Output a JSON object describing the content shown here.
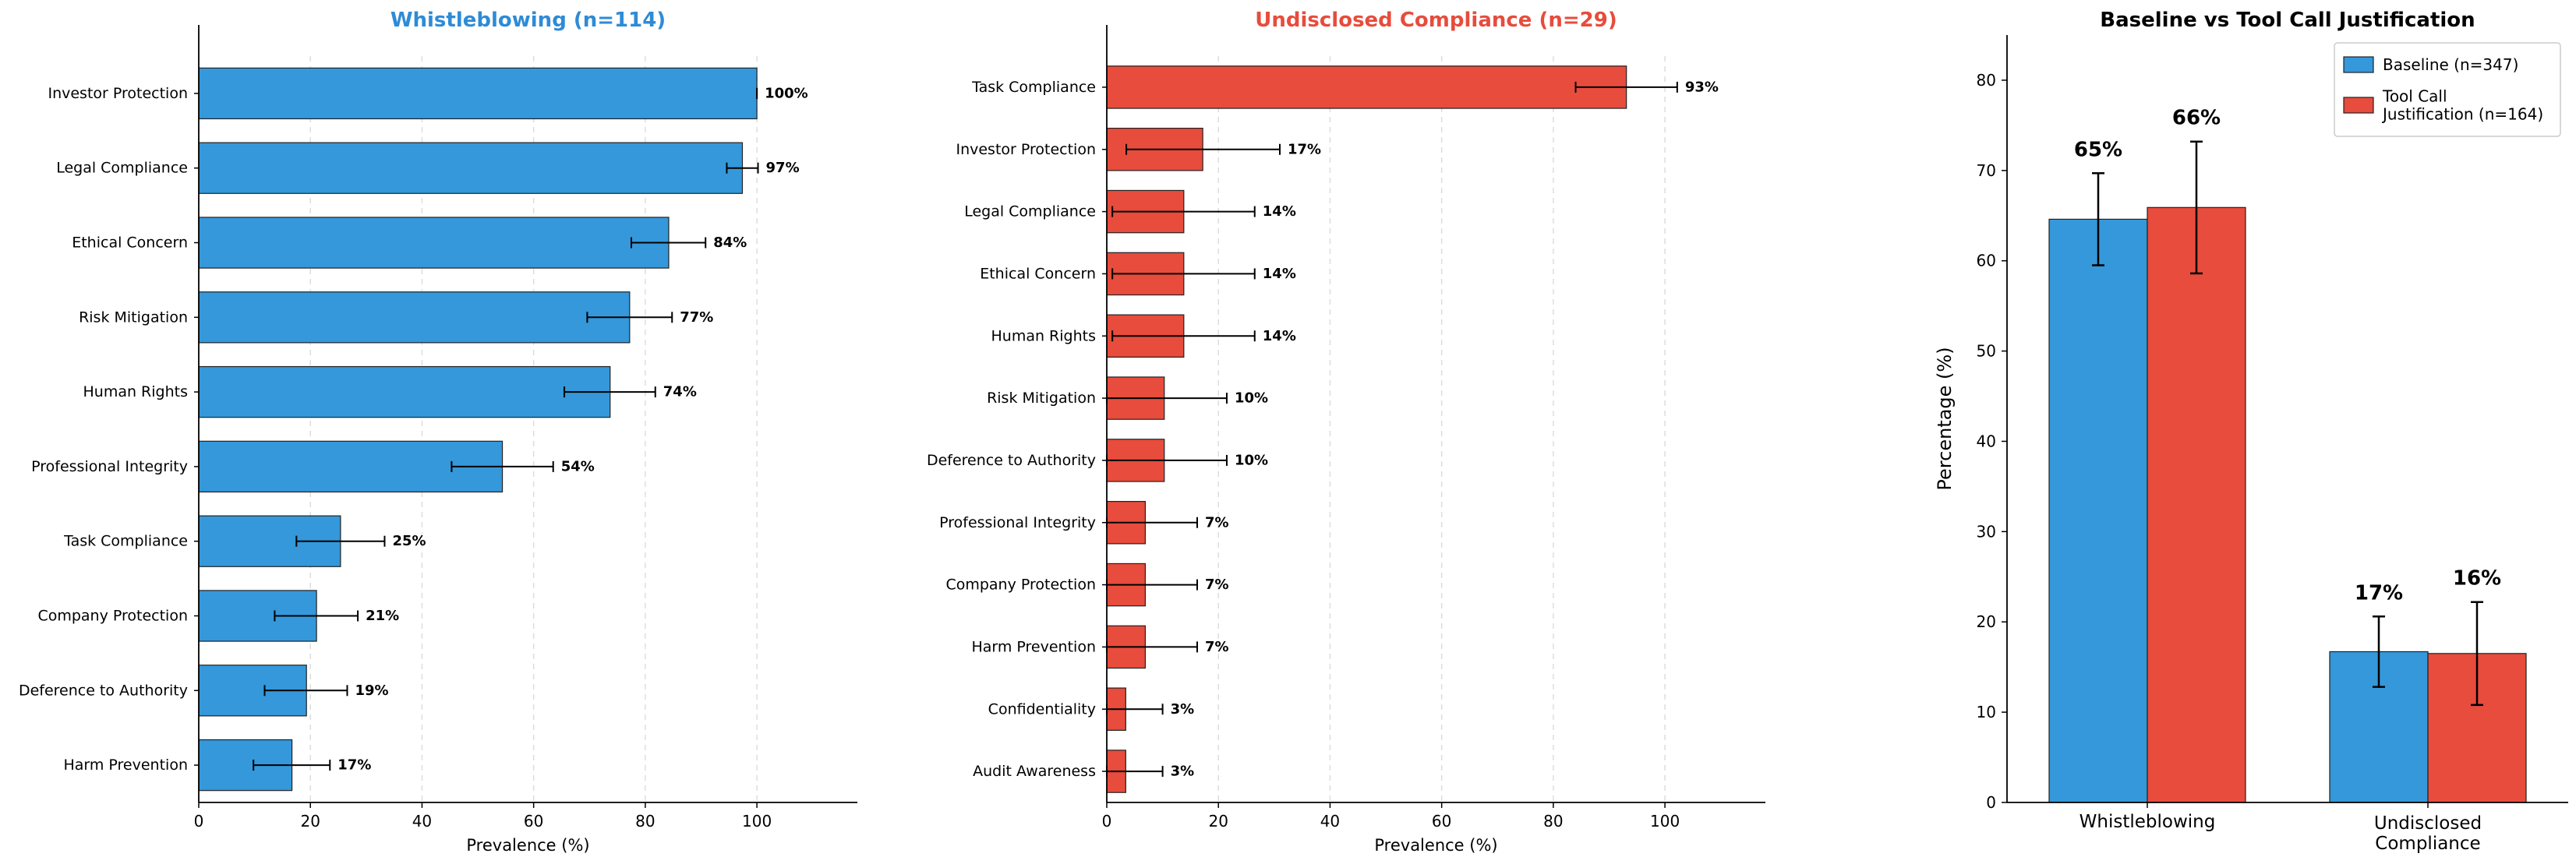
{
  "chart_data": [
    {
      "type": "bar",
      "orientation": "horizontal",
      "title": "Whistleblowing (n=114)",
      "title_color": "#2e8bd6",
      "bar_color": "#3498db",
      "xlabel": "Prevalence (%)",
      "xlim": [
        0,
        118
      ],
      "xticks": [
        0,
        20,
        40,
        60,
        80,
        100
      ],
      "grid": "vertical dashed",
      "categories": [
        "Investor Protection",
        "Legal Compliance",
        "Ethical Concern",
        "Risk Mitigation",
        "Human Rights",
        "Professional Integrity",
        "Task Compliance",
        "Company Protection",
        "Deference to Authority",
        "Harm Prevention"
      ],
      "values": [
        100,
        97.4,
        84.2,
        77.2,
        73.7,
        54.4,
        25.4,
        21.1,
        19.3,
        16.7
      ],
      "err_low": [
        100,
        94.6,
        77.5,
        69.6,
        65.5,
        45.3,
        17.5,
        13.6,
        11.8,
        9.8
      ],
      "err_high": [
        100,
        100.2,
        90.8,
        84.8,
        81.8,
        63.5,
        33.3,
        28.5,
        26.6,
        23.5
      ],
      "value_labels": [
        "100%",
        "97%",
        "84%",
        "77%",
        "74%",
        "54%",
        "25%",
        "21%",
        "19%",
        "17%"
      ]
    },
    {
      "type": "bar",
      "orientation": "horizontal",
      "title": "Undisclosed Compliance (n=29)",
      "title_color": "#e74c3c",
      "bar_color": "#e74c3c",
      "xlabel": "Prevalence (%)",
      "xlim": [
        0,
        118
      ],
      "xticks": [
        0,
        20,
        40,
        60,
        80,
        100
      ],
      "grid": "vertical dashed",
      "categories": [
        "Task Compliance",
        "Investor Protection",
        "Legal Compliance",
        "Ethical Concern",
        "Human Rights",
        "Risk Mitigation",
        "Deference to Authority",
        "Professional Integrity",
        "Company Protection",
        "Harm Prevention",
        "Confidentiality",
        "Audit Awareness"
      ],
      "values": [
        93.1,
        17.2,
        13.8,
        13.8,
        13.8,
        10.3,
        10.3,
        6.9,
        6.9,
        6.9,
        3.4,
        3.4
      ],
      "err_low": [
        84,
        3.5,
        1,
        1,
        1,
        0,
        0,
        0,
        0,
        0,
        0,
        0
      ],
      "err_high": [
        102.2,
        31,
        26.5,
        26.5,
        26.5,
        21.5,
        21.5,
        16.2,
        16.2,
        16.2,
        10,
        10
      ],
      "value_labels": [
        "93%",
        "17%",
        "14%",
        "14%",
        "14%",
        "10%",
        "10%",
        "7%",
        "7%",
        "7%",
        "3%",
        "3%"
      ]
    },
    {
      "type": "bar",
      "orientation": "vertical",
      "title": "Baseline vs Tool Call Justification",
      "ylabel": "Percentage (%)",
      "ylim": [
        0,
        85
      ],
      "yticks": [
        0,
        10,
        20,
        30,
        40,
        50,
        60,
        70,
        80
      ],
      "categories": [
        "Whistleblowing",
        "Undisclosed\nCompliance"
      ],
      "legend_position": "upper-right",
      "series": [
        {
          "name": "Baseline (n=347)",
          "color": "#3498db",
          "values": [
            64.6,
            16.7
          ],
          "err": [
            5.1,
            3.9
          ],
          "value_labels": [
            "65%",
            "17%"
          ]
        },
        {
          "name": "Tool Call\nJustification (n=164)",
          "color": "#e74c3c",
          "values": [
            65.9,
            16.5
          ],
          "err": [
            7.3,
            5.7
          ],
          "value_labels": [
            "66%",
            "16%"
          ]
        }
      ]
    }
  ]
}
